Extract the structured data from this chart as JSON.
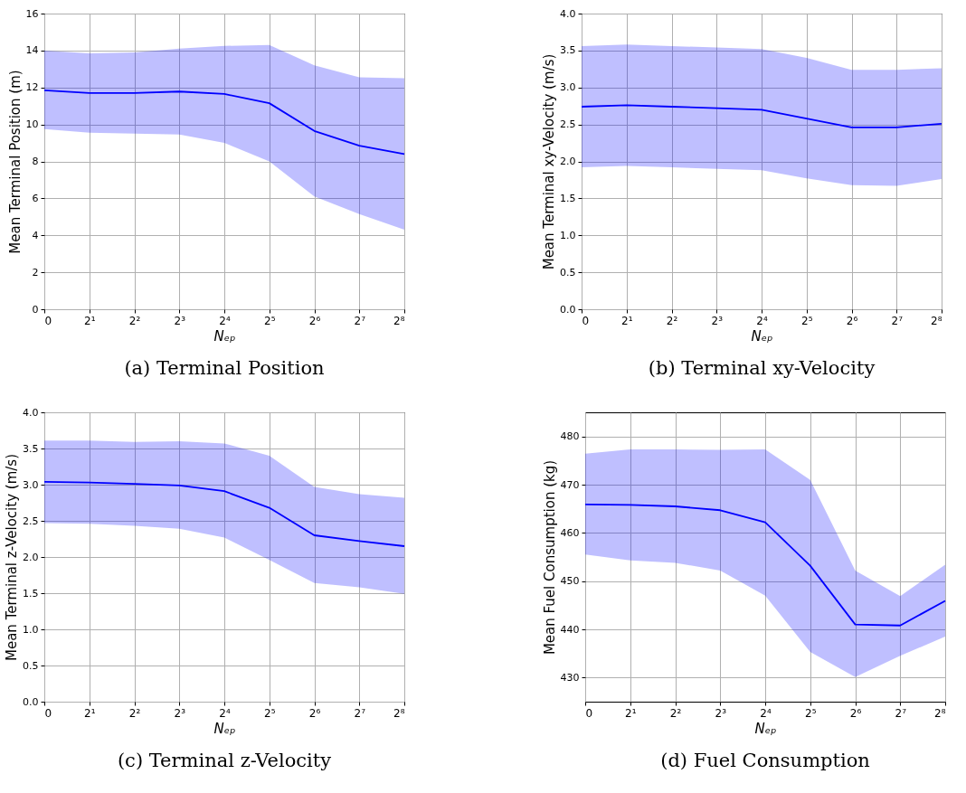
{
  "chart_data": [
    {
      "type": "line",
      "title": "(a) Terminal Position",
      "xlabel": "Nₑₚ",
      "ylabel": "Mean Terminal Position (m)",
      "categories": [
        "0",
        "2¹",
        "2²",
        "2³",
        "2⁴",
        "2⁵",
        "2⁶",
        "2⁷",
        "2⁸"
      ],
      "ylim": [
        0,
        16
      ],
      "yticks": [
        0,
        2,
        4,
        6,
        8,
        10,
        12,
        14,
        16
      ],
      "grid": true,
      "legend": false,
      "series": [
        {
          "color": "#0000ff",
          "values": [
            11.85,
            11.7,
            11.7,
            11.78,
            11.65,
            11.15,
            9.65,
            8.85,
            8.4
          ],
          "lower": [
            9.75,
            9.55,
            9.5,
            9.45,
            9.0,
            8.0,
            6.1,
            5.15,
            4.3
          ],
          "upper": [
            14.0,
            13.85,
            13.9,
            14.1,
            14.25,
            14.3,
            13.2,
            12.55,
            12.5
          ]
        }
      ]
    },
    {
      "type": "line",
      "title": "(b) Terminal xy-Velocity",
      "xlabel": "Nₑₚ",
      "ylabel": "Mean Terminal xy-Velocity (m/s)",
      "categories": [
        "0",
        "2¹",
        "2²",
        "2³",
        "2⁴",
        "2⁵",
        "2⁶",
        "2⁷",
        "2⁸"
      ],
      "ylim": [
        0,
        4
      ],
      "yticks": [
        {
          "value": 0,
          "label": "0.0"
        },
        0.5,
        {
          "value": 1,
          "label": "1.0"
        },
        1.5,
        {
          "value": 2,
          "label": "2.0"
        },
        2.5,
        {
          "value": 3,
          "label": "3.0"
        },
        3.5,
        {
          "value": 4,
          "label": "4.0"
        }
      ],
      "grid": true,
      "legend": false,
      "series": [
        {
          "color": "#0000ff",
          "values": [
            2.74,
            2.76,
            2.74,
            2.72,
            2.7,
            2.58,
            2.46,
            2.46,
            2.51
          ],
          "lower": [
            1.92,
            1.94,
            1.92,
            1.9,
            1.88,
            1.77,
            1.68,
            1.67,
            1.76
          ],
          "upper": [
            3.56,
            3.58,
            3.56,
            3.54,
            3.52,
            3.4,
            3.24,
            3.24,
            3.26
          ]
        }
      ]
    },
    {
      "type": "line",
      "title": "(c) Terminal z-Velocity",
      "xlabel": "Nₑₚ",
      "ylabel": "Mean Terminal z-Velocity (m/s)",
      "categories": [
        "0",
        "2¹",
        "2²",
        "2³",
        "2⁴",
        "2⁵",
        "2⁶",
        "2⁷",
        "2⁸"
      ],
      "ylim": [
        0,
        4
      ],
      "yticks": [
        {
          "value": 0,
          "label": "0.0"
        },
        0.5,
        {
          "value": 1,
          "label": "1.0"
        },
        1.5,
        {
          "value": 2,
          "label": "2.0"
        },
        2.5,
        {
          "value": 3,
          "label": "3.0"
        },
        3.5,
        {
          "value": 4,
          "label": "4.0"
        }
      ],
      "grid": true,
      "legend": false,
      "series": [
        {
          "color": "#0000ff",
          "values": [
            3.04,
            3.03,
            3.01,
            2.99,
            2.91,
            2.68,
            2.3,
            2.22,
            2.15
          ],
          "lower": [
            2.47,
            2.46,
            2.43,
            2.39,
            2.27,
            1.96,
            1.64,
            1.58,
            1.49
          ],
          "upper": [
            3.61,
            3.61,
            3.59,
            3.6,
            3.57,
            3.4,
            2.97,
            2.87,
            2.82
          ]
        }
      ]
    },
    {
      "type": "line",
      "title": "(d) Fuel Consumption",
      "xlabel": "Nₑₚ",
      "ylabel": "Mean Fuel Consumption (kg)",
      "categories": [
        "0",
        "2¹",
        "2²",
        "2³",
        "2⁴",
        "2⁵",
        "2⁶",
        "2⁷",
        "2⁸"
      ],
      "ylim": [
        425,
        485
      ],
      "yticks": [
        430,
        440,
        450,
        460,
        470,
        480
      ],
      "grid": true,
      "legend": false,
      "series": [
        {
          "color": "#0000ff",
          "values": [
            465.9,
            465.8,
            465.5,
            464.7,
            462.2,
            453.2,
            441.0,
            440.8,
            445.9
          ],
          "lower": [
            455.5,
            454.3,
            453.8,
            452.2,
            447.0,
            435.3,
            430.1,
            434.5,
            438.5
          ],
          "upper": [
            476.4,
            477.3,
            477.3,
            477.2,
            477.3,
            471.0,
            452.2,
            446.9,
            453.4
          ]
        }
      ]
    }
  ]
}
